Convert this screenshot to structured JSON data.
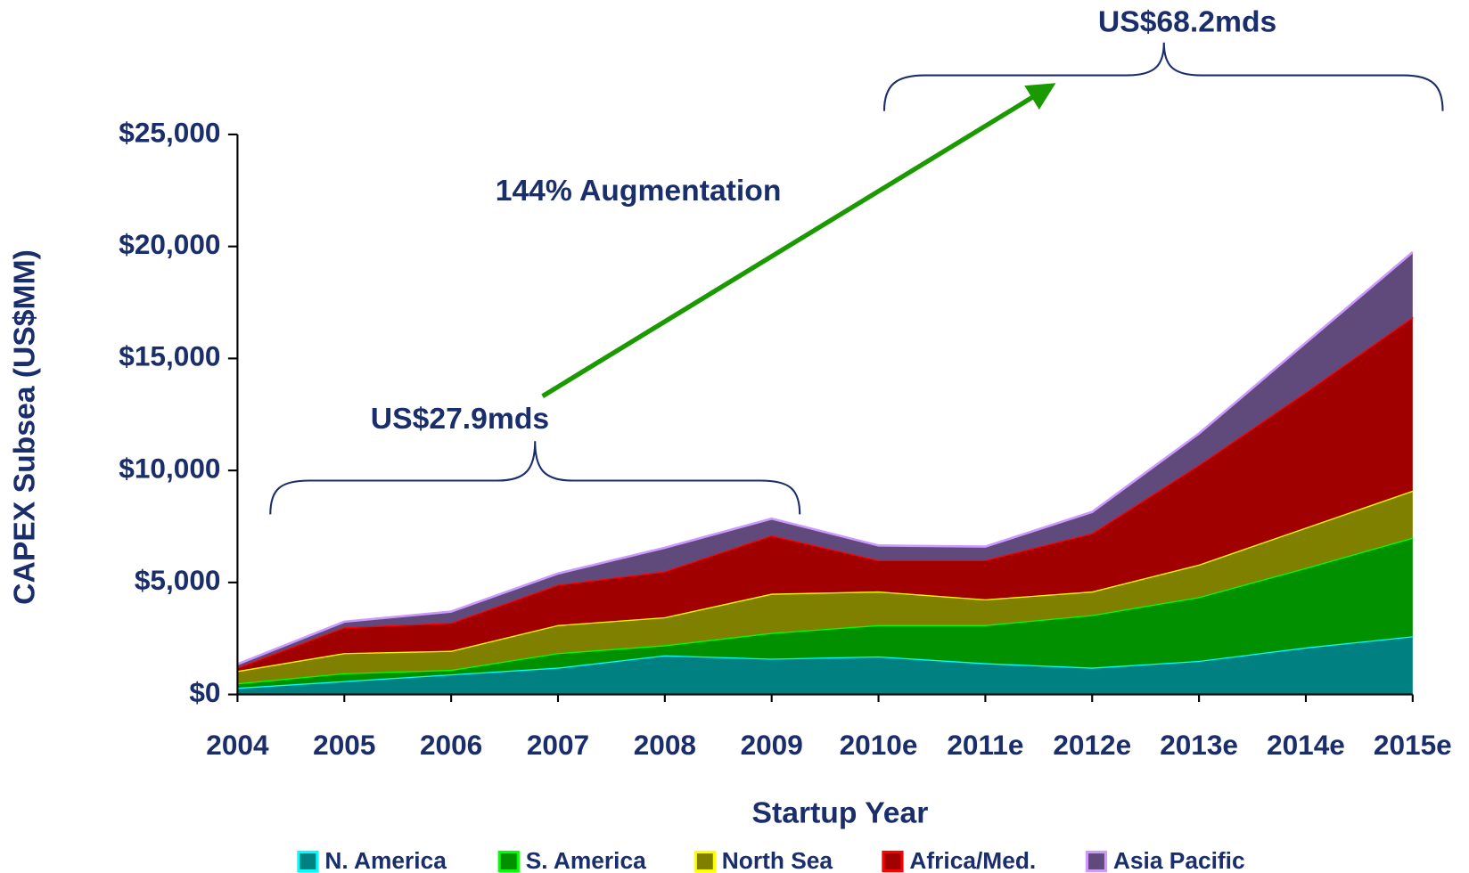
{
  "chart_data": {
    "type": "stacked_area",
    "annotations": [
      "US$68.2mds",
      "US$27.9mds",
      "144% Augmentation"
    ],
    "ylabel": "CAPEX Subsea (US$MM)",
    "xlabel": "Startup Year",
    "categories": [
      "2004",
      "2005",
      "2006",
      "2007",
      "2008",
      "2009",
      "2010e",
      "2011e",
      "2012e",
      "2013e",
      "2014e",
      "2015e"
    ],
    "series": [
      {
        "name": "N. America",
        "color": "#008080",
        "edge_color": "#00ffff",
        "values": [
          300,
          600,
          900,
          1200,
          1750,
          1600,
          1700,
          1400,
          1200,
          1500,
          2100,
          2600
        ]
      },
      {
        "name": "S. America",
        "color": "#009000",
        "edge_color": "#00ff00",
        "values": [
          200,
          350,
          200,
          650,
          450,
          1150,
          1400,
          1700,
          2350,
          2850,
          3550,
          4400
        ]
      },
      {
        "name": "North Sea",
        "color": "#808000",
        "edge_color": "#ffff00",
        "values": [
          550,
          900,
          850,
          1250,
          1250,
          1750,
          1500,
          1150,
          1050,
          1450,
          1800,
          2100
        ]
      },
      {
        "name": "Africa/Med.",
        "color": "#a00000",
        "edge_color": "#ff0000",
        "values": [
          150,
          1150,
          1250,
          1800,
          2050,
          2600,
          1400,
          1750,
          2600,
          4450,
          6050,
          7750
        ]
      },
      {
        "name": "Asia Pacific",
        "color": "#604a7b",
        "edge_color": "#cc99ff",
        "values": [
          150,
          250,
          500,
          500,
          1050,
          750,
          650,
          600,
          950,
          1400,
          2200,
          2900
        ]
      }
    ],
    "ylim": [
      0,
      25000
    ],
    "yticks": [
      {
        "value": 0,
        "label": "$0"
      },
      {
        "value": 5000,
        "label": "$5,000"
      },
      {
        "value": 10000,
        "label": "$10,000"
      },
      {
        "value": 15000,
        "label": "$15,000"
      },
      {
        "value": 20000,
        "label": "$20,000"
      },
      {
        "value": 25000,
        "label": "$25,000"
      }
    ]
  }
}
